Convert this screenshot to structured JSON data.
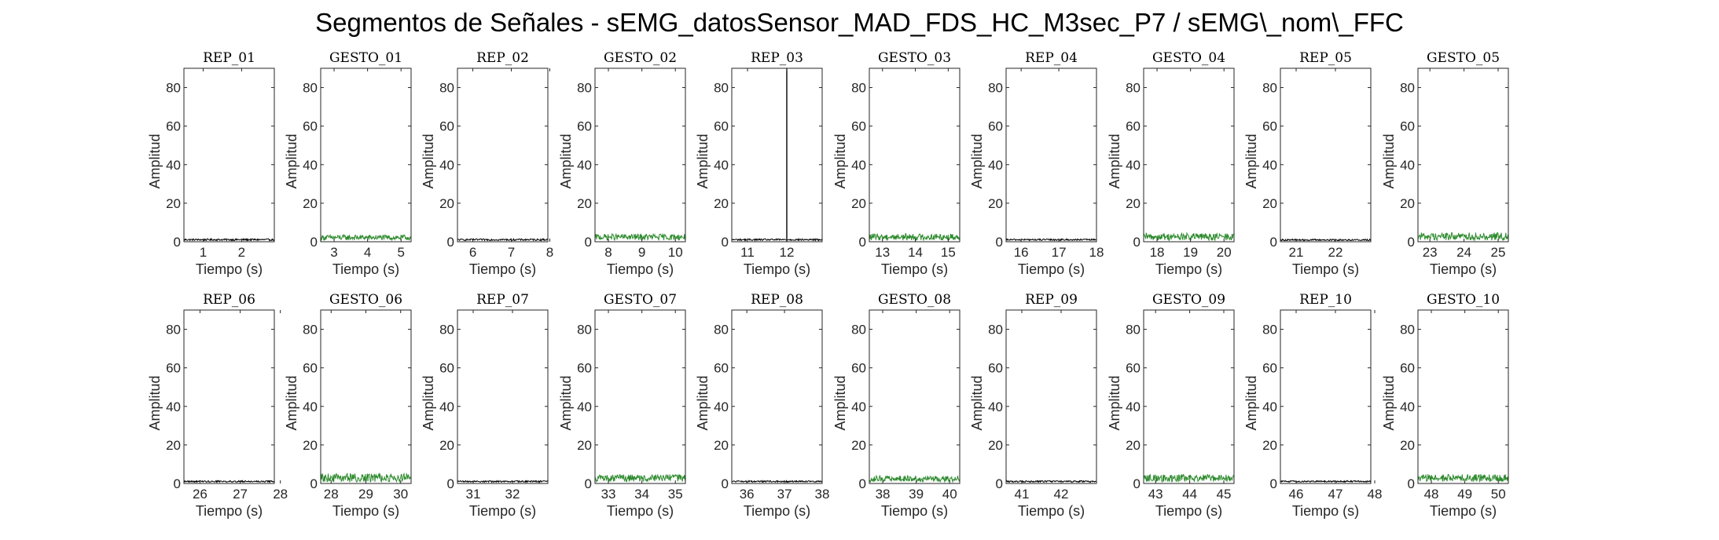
{
  "figure": {
    "title": "Segmentos de Señales - sEMG_datosSensor_MAD_FDS_HC_M3sec_P7 / sEMG\\_nom\\_FFC"
  },
  "colors": {
    "rep": "#000000",
    "gesto": "#2e8b2e",
    "axis": "#262626"
  },
  "chart_data": [
    {
      "type": "line",
      "title": "REP_01",
      "kind": "rep",
      "xlabel": "Tiempo (s)",
      "ylabel": "Amplitud",
      "xlim": [
        0.5,
        2.85
      ],
      "xticks": [
        1,
        2
      ],
      "ylim": [
        0,
        90
      ],
      "yticks": [
        0,
        20,
        40,
        60,
        80
      ],
      "series": [
        {
          "baseline": 0.9,
          "amplitude": 0.9
        }
      ]
    },
    {
      "type": "line",
      "title": "GESTO_01",
      "kind": "gesto",
      "xlabel": "Tiempo (s)",
      "ylabel": "Amplitud",
      "xlim": [
        2.6,
        5.3
      ],
      "xticks": [
        3,
        4,
        5
      ],
      "ylim": [
        0,
        90
      ],
      "yticks": [
        0,
        20,
        40,
        60,
        80
      ],
      "series": [
        {
          "baseline": 1.6,
          "amplitude": 2.8
        }
      ]
    },
    {
      "type": "line",
      "title": "REP_02",
      "kind": "rep",
      "xlabel": "Tiempo (s)",
      "ylabel": "Amplitud",
      "xlim": [
        5.6,
        7.95
      ],
      "xticks": [
        6,
        7,
        8
      ],
      "ylim": [
        0,
        90
      ],
      "yticks": [
        0,
        20,
        40,
        60,
        80
      ],
      "series": [
        {
          "baseline": 0.9,
          "amplitude": 0.9
        }
      ]
    },
    {
      "type": "line",
      "title": "GESTO_02",
      "kind": "gesto",
      "xlabel": "Tiempo (s)",
      "ylabel": "Amplitud",
      "xlim": [
        7.6,
        10.3
      ],
      "xticks": [
        8,
        9,
        10
      ],
      "ylim": [
        0,
        90
      ],
      "yticks": [
        0,
        20,
        40,
        60,
        80
      ],
      "series": [
        {
          "baseline": 1.8,
          "amplitude": 3.2
        }
      ]
    },
    {
      "type": "line",
      "title": "REP_03",
      "kind": "rep",
      "xlabel": "Tiempo (s)",
      "ylabel": "Amplitud",
      "xlim": [
        10.6,
        12.9
      ],
      "xticks": [
        11,
        12
      ],
      "ylim": [
        0,
        90
      ],
      "yticks": [
        0,
        20,
        40,
        60,
        80
      ],
      "series": [
        {
          "baseline": 0.9,
          "amplitude": 0.9,
          "spike_x": 12.0,
          "spike_y": 90
        }
      ]
    },
    {
      "type": "line",
      "title": "GESTO_03",
      "kind": "gesto",
      "xlabel": "Tiempo (s)",
      "ylabel": "Amplitud",
      "xlim": [
        12.6,
        15.35
      ],
      "xticks": [
        13,
        14,
        15
      ],
      "ylim": [
        0,
        90
      ],
      "yticks": [
        0,
        20,
        40,
        60,
        80
      ],
      "series": [
        {
          "baseline": 1.8,
          "amplitude": 3.5
        }
      ]
    },
    {
      "type": "line",
      "title": "REP_04",
      "kind": "rep",
      "xlabel": "Tiempo (s)",
      "ylabel": "Amplitud",
      "xlim": [
        15.6,
        18.0
      ],
      "xticks": [
        16,
        17,
        18
      ],
      "ylim": [
        0,
        90
      ],
      "yticks": [
        0,
        20,
        40,
        60,
        80
      ],
      "series": [
        {
          "baseline": 0.9,
          "amplitude": 0.8
        }
      ]
    },
    {
      "type": "line",
      "title": "GESTO_04",
      "kind": "gesto",
      "xlabel": "Tiempo (s)",
      "ylabel": "Amplitud",
      "xlim": [
        17.6,
        20.3
      ],
      "xticks": [
        18,
        19,
        20
      ],
      "ylim": [
        0,
        90
      ],
      "yticks": [
        0,
        20,
        40,
        60,
        80
      ],
      "series": [
        {
          "baseline": 1.8,
          "amplitude": 3.8
        }
      ]
    },
    {
      "type": "line",
      "title": "REP_05",
      "kind": "rep",
      "xlabel": "Tiempo (s)",
      "ylabel": "Amplitud",
      "xlim": [
        20.6,
        22.9
      ],
      "xticks": [
        21,
        22
      ],
      "ylim": [
        0,
        90
      ],
      "yticks": [
        0,
        20,
        40,
        60,
        80
      ],
      "series": [
        {
          "baseline": 0.8,
          "amplitude": 0.8
        }
      ]
    },
    {
      "type": "line",
      "title": "GESTO_05",
      "kind": "gesto",
      "xlabel": "Tiempo (s)",
      "ylabel": "Amplitud",
      "xlim": [
        22.65,
        25.3
      ],
      "xticks": [
        23,
        24,
        25
      ],
      "ylim": [
        0,
        90
      ],
      "yticks": [
        0,
        20,
        40,
        60,
        80
      ],
      "series": [
        {
          "baseline": 2.0,
          "amplitude": 4.0
        }
      ]
    },
    {
      "type": "line",
      "title": "REP_06",
      "kind": "rep",
      "xlabel": "Tiempo (s)",
      "ylabel": "Amplitud",
      "xlim": [
        25.6,
        27.85
      ],
      "xticks": [
        26,
        27,
        28
      ],
      "ylim": [
        0,
        90
      ],
      "yticks": [
        0,
        20,
        40,
        60,
        80
      ],
      "series": [
        {
          "baseline": 0.9,
          "amplitude": 0.8
        }
      ]
    },
    {
      "type": "line",
      "title": "GESTO_06",
      "kind": "gesto",
      "xlabel": "Tiempo (s)",
      "ylabel": "Amplitud",
      "xlim": [
        27.7,
        30.3
      ],
      "xticks": [
        28,
        29,
        30
      ],
      "ylim": [
        0,
        90
      ],
      "yticks": [
        0,
        20,
        40,
        60,
        80
      ],
      "series": [
        {
          "baseline": 2.0,
          "amplitude": 4.5
        }
      ]
    },
    {
      "type": "line",
      "title": "REP_07",
      "kind": "rep",
      "xlabel": "Tiempo (s)",
      "ylabel": "Amplitud",
      "xlim": [
        30.6,
        32.9
      ],
      "xticks": [
        31,
        32
      ],
      "ylim": [
        0,
        90
      ],
      "yticks": [
        0,
        20,
        40,
        60,
        80
      ],
      "series": [
        {
          "baseline": 0.9,
          "amplitude": 0.8
        }
      ]
    },
    {
      "type": "line",
      "title": "GESTO_07",
      "kind": "gesto",
      "xlabel": "Tiempo (s)",
      "ylabel": "Amplitud",
      "xlim": [
        32.6,
        35.3
      ],
      "xticks": [
        33,
        34,
        35
      ],
      "ylim": [
        0,
        90
      ],
      "yticks": [
        0,
        20,
        40,
        60,
        80
      ],
      "series": [
        {
          "baseline": 2.0,
          "amplitude": 3.8
        }
      ]
    },
    {
      "type": "line",
      "title": "REP_08",
      "kind": "rep",
      "xlabel": "Tiempo (s)",
      "ylabel": "Amplitud",
      "xlim": [
        35.6,
        38.0
      ],
      "xticks": [
        36,
        37,
        38
      ],
      "ylim": [
        0,
        90
      ],
      "yticks": [
        0,
        20,
        40,
        60,
        80
      ],
      "series": [
        {
          "baseline": 0.9,
          "amplitude": 0.8
        }
      ]
    },
    {
      "type": "line",
      "title": "GESTO_08",
      "kind": "gesto",
      "xlabel": "Tiempo (s)",
      "ylabel": "Amplitud",
      "xlim": [
        37.6,
        40.3
      ],
      "xticks": [
        38,
        39,
        40
      ],
      "ylim": [
        0,
        90
      ],
      "yticks": [
        0,
        20,
        40,
        60,
        80
      ],
      "series": [
        {
          "baseline": 1.8,
          "amplitude": 3.2
        }
      ]
    },
    {
      "type": "line",
      "title": "REP_09",
      "kind": "rep",
      "xlabel": "Tiempo (s)",
      "ylabel": "Amplitud",
      "xlim": [
        40.6,
        42.9
      ],
      "xticks": [
        41,
        42
      ],
      "ylim": [
        0,
        90
      ],
      "yticks": [
        0,
        20,
        40,
        60,
        80
      ],
      "series": [
        {
          "baseline": 0.9,
          "amplitude": 0.8
        }
      ]
    },
    {
      "type": "line",
      "title": "GESTO_09",
      "kind": "gesto",
      "xlabel": "Tiempo (s)",
      "ylabel": "Amplitud",
      "xlim": [
        42.65,
        45.3
      ],
      "xticks": [
        43,
        44,
        45
      ],
      "ylim": [
        0,
        90
      ],
      "yticks": [
        0,
        20,
        40,
        60,
        80
      ],
      "series": [
        {
          "baseline": 2.0,
          "amplitude": 3.8
        }
      ]
    },
    {
      "type": "line",
      "title": "REP_10",
      "kind": "rep",
      "xlabel": "Tiempo (s)",
      "ylabel": "Amplitud",
      "xlim": [
        45.6,
        47.9
      ],
      "xticks": [
        46,
        47,
        48
      ],
      "ylim": [
        0,
        90
      ],
      "yticks": [
        0,
        20,
        40,
        60,
        80
      ],
      "series": [
        {
          "baseline": 0.9,
          "amplitude": 0.8
        }
      ]
    },
    {
      "type": "line",
      "title": "GESTO_10",
      "kind": "gesto",
      "xlabel": "Tiempo (s)",
      "ylabel": "Amplitud",
      "xlim": [
        47.6,
        50.3
      ],
      "xticks": [
        48,
        49,
        50
      ],
      "ylim": [
        0,
        90
      ],
      "yticks": [
        0,
        20,
        40,
        60,
        80
      ],
      "series": [
        {
          "baseline": 2.0,
          "amplitude": 4.0
        }
      ]
    }
  ]
}
